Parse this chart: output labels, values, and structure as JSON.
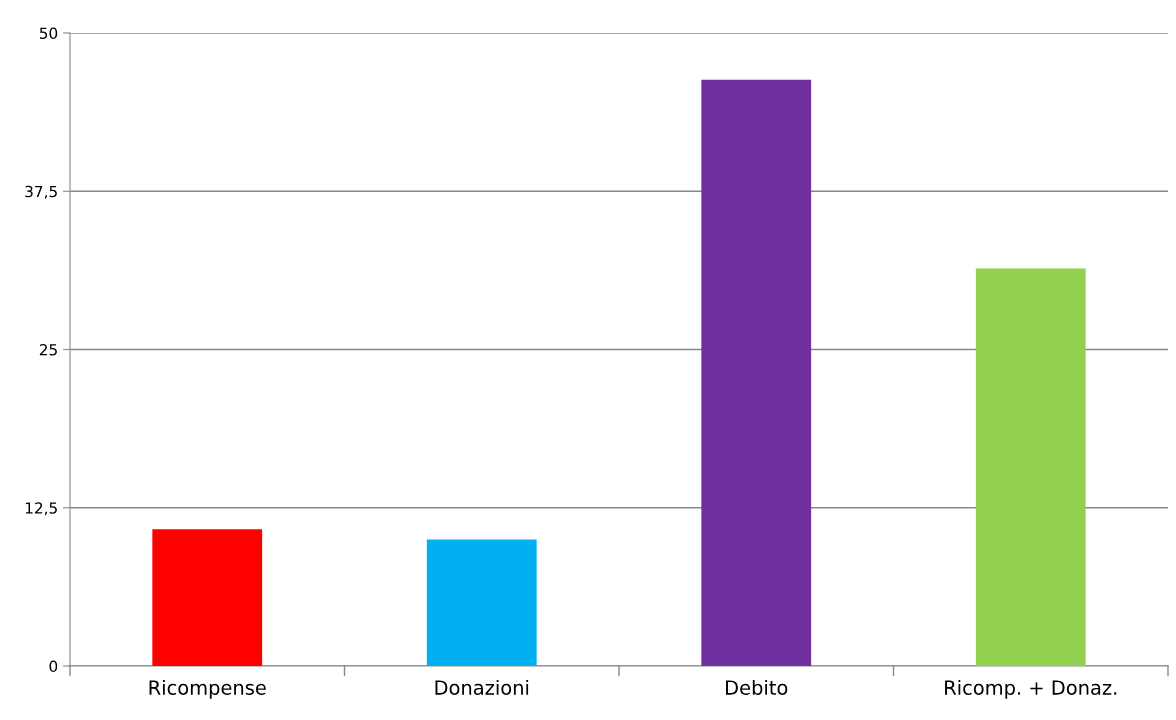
{
  "chart_data": {
    "type": "bar",
    "categories": [
      "Ricompense",
      "Donazioni",
      "Debito",
      "Ricomp. + Donaz."
    ],
    "values": [
      10.8,
      10,
      46.3,
      31.4
    ],
    "colors": [
      "#ff0000",
      "#00b0f0",
      "#7030a0",
      "#92d050"
    ],
    "ylim": [
      0,
      50
    ],
    "yticks": [
      0,
      {
        "value": 12.5,
        "label": "12,5"
      },
      25,
      {
        "value": 37.5,
        "label": "37,5"
      },
      50
    ],
    "grid": "y",
    "legend": false
  }
}
